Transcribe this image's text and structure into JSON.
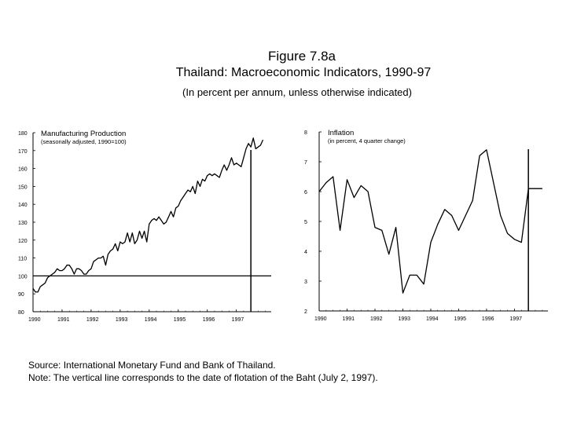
{
  "figure": {
    "number": "Figure 7.8a",
    "title": "Thailand: Macroeconomic Indicators, 1990-97",
    "subtitle": "(In percent per annum, unless otherwise indicated)"
  },
  "notes": {
    "source": "Source: International Monetary Fund and Bank of Thailand.",
    "note": "Note: The vertical line corresponds to the date of flotation of the Baht (July 2, 1997)."
  },
  "chart_data": [
    {
      "type": "line",
      "title": "Manufacturing Production",
      "subtitle": "(seasonally adjusted, 1990=100)",
      "ylim": [
        80,
        180
      ],
      "y_ticks": [
        "80",
        "90",
        "100",
        "110",
        "120",
        "130",
        "140",
        "150",
        "160",
        "170",
        "180"
      ],
      "x_ticks": [
        "1990",
        "1991",
        "1992",
        "1993",
        "1994",
        "1995",
        "1996",
        "1997"
      ],
      "xlim": [
        1990,
        1998.2
      ],
      "reference_line_y": 100,
      "event_line_x": 1997.5,
      "series": [
        {
          "name": "Manufacturing Production",
          "x": [
            1990.0,
            1990.083,
            1990.167,
            1990.25,
            1990.333,
            1990.417,
            1990.5,
            1990.583,
            1990.667,
            1990.75,
            1990.833,
            1990.917,
            1991.0,
            1991.083,
            1991.167,
            1991.25,
            1991.333,
            1991.417,
            1991.5,
            1991.583,
            1991.667,
            1991.75,
            1991.833,
            1991.917,
            1992.0,
            1992.083,
            1992.167,
            1992.25,
            1992.333,
            1992.417,
            1992.5,
            1992.583,
            1992.667,
            1992.75,
            1992.833,
            1992.917,
            1993.0,
            1993.083,
            1993.167,
            1993.25,
            1993.333,
            1993.417,
            1993.5,
            1993.583,
            1993.667,
            1993.75,
            1993.833,
            1993.917,
            1994.0,
            1994.083,
            1994.167,
            1994.25,
            1994.333,
            1994.417,
            1994.5,
            1994.583,
            1994.667,
            1994.75,
            1994.833,
            1994.917,
            1995.0,
            1995.083,
            1995.167,
            1995.25,
            1995.333,
            1995.417,
            1995.5,
            1995.583,
            1995.667,
            1995.75,
            1995.833,
            1995.917,
            1996.0,
            1996.083,
            1996.167,
            1996.25,
            1996.333,
            1996.417,
            1996.5,
            1996.583,
            1996.667,
            1996.75,
            1996.833,
            1996.917,
            1997.0,
            1997.083,
            1997.167,
            1997.25,
            1997.333,
            1997.417,
            1997.5,
            1997.583,
            1997.667,
            1997.75,
            1997.833,
            1997.917
          ],
          "values": [
            93,
            91,
            91,
            94,
            95,
            96,
            99,
            100,
            101,
            102,
            104,
            103,
            103,
            104,
            106,
            106,
            104,
            101,
            104,
            104,
            103,
            101,
            101,
            103,
            104,
            108,
            109,
            110,
            110,
            111,
            106,
            112,
            114,
            115,
            118,
            114,
            119,
            118,
            119,
            124,
            119,
            124,
            118,
            120,
            125,
            121,
            125,
            119,
            129,
            131,
            132,
            131,
            133,
            131,
            129,
            130,
            133,
            136,
            133,
            138,
            139,
            142,
            144,
            146,
            148,
            147,
            150,
            146,
            153,
            150,
            154,
            153,
            156,
            157,
            156,
            157,
            156,
            155,
            159,
            162,
            159,
            162,
            166,
            162,
            163,
            162,
            161,
            166,
            171,
            174,
            172,
            177,
            171,
            172,
            173,
            176
          ]
        }
      ]
    },
    {
      "type": "line",
      "title": "Inflation",
      "subtitle": "(in percent, 4 quarter change)",
      "ylim": [
        2,
        8
      ],
      "y_ticks": [
        "2",
        "3",
        "4",
        "5",
        "6",
        "7",
        "8"
      ],
      "x_ticks": [
        "1990",
        "1991",
        "1992",
        "1993",
        "1994",
        "1995",
        "1996",
        "1997"
      ],
      "xlim": [
        1990,
        1998.2
      ],
      "event_line_x": 1997.5,
      "series": [
        {
          "name": "Inflation",
          "x": [
            1990.0,
            1990.25,
            1990.5,
            1990.75,
            1991.0,
            1991.25,
            1991.5,
            1991.75,
            1992.0,
            1992.25,
            1992.5,
            1992.75,
            1993.0,
            1993.25,
            1993.5,
            1993.75,
            1994.0,
            1994.25,
            1994.5,
            1994.75,
            1995.0,
            1995.25,
            1995.5,
            1995.75,
            1996.0,
            1996.25,
            1996.5,
            1996.75,
            1997.0,
            1997.25,
            1997.5,
            1997.75,
            1998.0
          ],
          "values": [
            6.0,
            6.3,
            6.5,
            4.7,
            6.4,
            5.8,
            6.2,
            6.0,
            4.8,
            4.7,
            3.9,
            4.8,
            2.6,
            3.2,
            3.2,
            2.9,
            4.3,
            4.9,
            5.4,
            5.2,
            4.7,
            5.2,
            5.7,
            7.2,
            7.4,
            6.3,
            5.2,
            4.6,
            4.4,
            4.3,
            6.1,
            6.1,
            6.1
          ]
        }
      ]
    }
  ]
}
